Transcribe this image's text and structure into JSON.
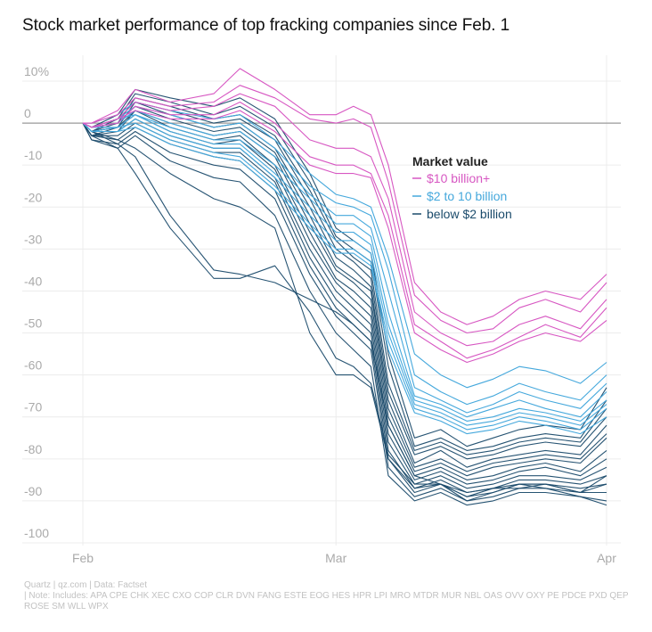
{
  "title": "Stock market performance of top fracking companies since Feb. 1",
  "footer": {
    "source": "Quartz | qz.com | Data: Factset",
    "note": "| Note: Includes: APA CPE CHK XEC CXO COP CLR DVN FANG ESTE EOG HES HPR LPI MRO MTDR MUR NBL OAS OVV OXY PE PDCE PXD QEP ROSE SM WLL WPX"
  },
  "chart_data": {
    "type": "line",
    "ylim": [
      -102,
      13
    ],
    "yticks": [
      {
        "value": 10,
        "label": "10%"
      },
      {
        "value": 0,
        "label": "0"
      },
      {
        "value": -10,
        "label": "-10"
      },
      {
        "value": -20,
        "label": "-20"
      },
      {
        "value": -30,
        "label": "-30"
      },
      {
        "value": -40,
        "label": "-40"
      },
      {
        "value": -50,
        "label": "-50"
      },
      {
        "value": -60,
        "label": "-60"
      },
      {
        "value": -70,
        "label": "-70"
      },
      {
        "value": -80,
        "label": "-80"
      },
      {
        "value": -90,
        "label": "-90"
      },
      {
        "value": -100,
        "label": "-100"
      }
    ],
    "xlim": [
      -1,
      62
    ],
    "xticks": [
      {
        "value": 0,
        "label": "Feb"
      },
      {
        "value": 29,
        "label": "Mar"
      },
      {
        "value": 60,
        "label": "Apr"
      }
    ],
    "legend": {
      "title": "Market value",
      "placement": "center-right",
      "items": [
        {
          "label": "$10 billion+",
          "color": "#d757c2"
        },
        {
          "label": "$2 to 10 billion",
          "color": "#45a8dc"
        },
        {
          "label": "below $2 billion",
          "color": "#1b4b6b"
        }
      ]
    },
    "anchors": [
      0,
      1,
      4,
      6,
      10,
      15,
      18,
      22,
      26,
      29,
      31,
      33,
      35,
      38,
      41,
      44,
      47,
      50,
      53,
      57,
      60
    ],
    "series": [
      {
        "group": "large",
        "values": [
          0,
          0,
          3,
          8,
          5,
          7,
          13,
          8,
          2,
          2,
          4,
          2,
          -10,
          -38,
          -45,
          -48,
          -46,
          -42,
          -40,
          -42,
          -36
        ]
      },
      {
        "group": "large",
        "values": [
          0,
          0,
          2,
          6,
          4,
          5,
          9,
          6,
          1,
          0,
          1,
          -1,
          -14,
          -41,
          -47,
          -50,
          -49,
          -44,
          -42,
          -45,
          -38
        ]
      },
      {
        "group": "large",
        "values": [
          0,
          -1,
          1,
          5,
          3,
          4,
          7,
          4,
          -4,
          -6,
          -6,
          -8,
          -18,
          -45,
          -50,
          -53,
          -52,
          -48,
          -46,
          -49,
          -42
        ]
      },
      {
        "group": "large",
        "values": [
          0,
          -1,
          0,
          4,
          2,
          2,
          5,
          0,
          -8,
          -10,
          -10,
          -12,
          -22,
          -48,
          -52,
          -56,
          -54,
          -51,
          -48,
          -51,
          -44
        ]
      },
      {
        "group": "large",
        "values": [
          0,
          -1,
          1,
          3,
          1,
          1,
          3,
          -2,
          -10,
          -12,
          -12,
          -13,
          -25,
          -50,
          -54,
          -57,
          -55,
          -52,
          -50,
          -52,
          -47
        ]
      },
      {
        "group": "mid",
        "values": [
          0,
          0,
          2,
          5,
          3,
          1,
          2,
          -4,
          -12,
          -17,
          -18,
          -20,
          -32,
          -55,
          -60,
          -63,
          -61,
          -58,
          -59,
          -62,
          -57
        ]
      },
      {
        "group": "mid",
        "values": [
          0,
          -1,
          1,
          4,
          2,
          -1,
          0,
          -6,
          -15,
          -19,
          -20,
          -22,
          -35,
          -60,
          -64,
          -67,
          -65,
          -62,
          -64,
          -66,
          -60
        ]
      },
      {
        "group": "mid",
        "values": [
          0,
          -1,
          0,
          3,
          0,
          -3,
          -2,
          -8,
          -17,
          -22,
          -22,
          -25,
          -40,
          -63,
          -66,
          -69,
          -67,
          -64,
          -66,
          -68,
          -62
        ]
      },
      {
        "group": "mid",
        "values": [
          0,
          -1,
          1,
          2,
          -1,
          -4,
          -4,
          -10,
          -18,
          -24,
          -24,
          -27,
          -45,
          -65,
          -67,
          -70,
          -68,
          -66,
          -68,
          -70,
          -64
        ]
      },
      {
        "group": "mid",
        "values": [
          0,
          -1,
          -1,
          2,
          -2,
          -5,
          -5,
          -12,
          -20,
          -26,
          -26,
          -29,
          -48,
          -66,
          -68,
          -71,
          -70,
          -68,
          -69,
          -71,
          -66
        ]
      },
      {
        "group": "mid",
        "values": [
          0,
          -2,
          -2,
          1,
          -3,
          -6,
          -6,
          -13,
          -22,
          -28,
          -28,
          -31,
          -50,
          -67,
          -69,
          -72,
          -71,
          -69,
          -70,
          -72,
          -67
        ]
      },
      {
        "group": "mid",
        "values": [
          0,
          -2,
          -1,
          0,
          -4,
          -7,
          -8,
          -15,
          -24,
          -30,
          -30,
          -33,
          -52,
          -68,
          -70,
          -73,
          -72,
          -70,
          -71,
          -73,
          -68
        ]
      },
      {
        "group": "mid",
        "values": [
          0,
          -2,
          -2,
          -1,
          -5,
          -8,
          -9,
          -16,
          -25,
          -31,
          -31,
          -34,
          -54,
          -69,
          -71,
          -74,
          -73,
          -71,
          -72,
          -74,
          -70
        ]
      },
      {
        "group": "small",
        "values": [
          0,
          -1,
          2,
          8,
          6,
          4,
          6,
          1,
          -12,
          -25,
          -28,
          -31,
          -55,
          -75,
          -73,
          -77,
          -75,
          -73,
          -72,
          -73,
          -63
        ]
      },
      {
        "group": "small",
        "values": [
          0,
          -1,
          1,
          7,
          5,
          2,
          4,
          -1,
          -14,
          -27,
          -30,
          -33,
          -58,
          -77,
          -75,
          -78,
          -77,
          -75,
          -74,
          -75,
          -66
        ]
      },
      {
        "group": "small",
        "values": [
          0,
          -1,
          0,
          6,
          4,
          1,
          2,
          -3,
          -16,
          -28,
          -32,
          -35,
          -62,
          -78,
          -76,
          -79,
          -78,
          -76,
          -75,
          -76,
          -68
        ]
      },
      {
        "group": "small",
        "values": [
          0,
          -2,
          1,
          5,
          3,
          0,
          1,
          -4,
          -18,
          -30,
          -33,
          -37,
          -64,
          -79,
          -77,
          -80,
          -79,
          -77,
          -76,
          -77,
          -70
        ]
      },
      {
        "group": "small",
        "values": [
          0,
          -2,
          -1,
          5,
          2,
          -1,
          0,
          -6,
          -20,
          -32,
          -35,
          -39,
          -66,
          -81,
          -78,
          -82,
          -80,
          -79,
          -78,
          -79,
          -72
        ]
      },
      {
        "group": "small",
        "values": [
          0,
          -2,
          0,
          4,
          1,
          -2,
          -1,
          -7,
          -22,
          -34,
          -37,
          -40,
          -68,
          -82,
          -80,
          -83,
          -81,
          -80,
          -79,
          -80,
          -74
        ]
      },
      {
        "group": "small",
        "values": [
          0,
          -2,
          -1,
          3,
          0,
          -3,
          -2,
          -8,
          -24,
          -35,
          -38,
          -42,
          -70,
          -83,
          -81,
          -84,
          -82,
          -81,
          -80,
          -81,
          -75
        ]
      },
      {
        "group": "small",
        "values": [
          0,
          -2,
          -2,
          3,
          -1,
          -4,
          -3,
          -10,
          -26,
          -37,
          -40,
          -44,
          -72,
          -84,
          -82,
          -85,
          -84,
          -82,
          -81,
          -83,
          -78
        ]
      },
      {
        "group": "small",
        "values": [
          0,
          -3,
          -1,
          2,
          -2,
          -5,
          -4,
          -11,
          -28,
          -38,
          -42,
          -46,
          -74,
          -85,
          -83,
          -86,
          -85,
          -83,
          -82,
          -84,
          -80
        ]
      },
      {
        "group": "small",
        "values": [
          0,
          -3,
          -2,
          1,
          -3,
          -6,
          -6,
          -13,
          -30,
          -40,
          -44,
          -48,
          -76,
          -86,
          -84,
          -87,
          -86,
          -84,
          -84,
          -85,
          -82
        ]
      },
      {
        "group": "small",
        "values": [
          0,
          -3,
          -3,
          0,
          -4,
          -7,
          -7,
          -14,
          -32,
          -42,
          -46,
          -50,
          -78,
          -87,
          -85,
          -88,
          -87,
          -85,
          -85,
          -86,
          -84
        ]
      },
      {
        "group": "small",
        "values": [
          0,
          -3,
          -4,
          -1,
          -5,
          -8,
          -9,
          -16,
          -34,
          -44,
          -48,
          -52,
          -80,
          -88,
          -86,
          -89,
          -88,
          -86,
          -86,
          -87,
          -86
        ]
      },
      {
        "group": "small",
        "values": [
          0,
          -4,
          -5,
          -2,
          -7,
          -10,
          -11,
          -18,
          -36,
          -46,
          -50,
          -54,
          -82,
          -89,
          -87,
          -90,
          -89,
          -87,
          -87,
          -88,
          -88
        ]
      },
      {
        "group": "small",
        "values": [
          0,
          -4,
          -6,
          -3,
          -9,
          -13,
          -14,
          -22,
          -40,
          -50,
          -54,
          -58,
          -84,
          -90,
          -88,
          -91,
          -90,
          -88,
          -88,
          -89,
          -90
        ]
      },
      {
        "group": "small",
        "values": [
          0,
          -2,
          -5,
          -8,
          -22,
          -35,
          -36,
          -38,
          -42,
          -45,
          -48,
          -52,
          -72,
          -84,
          -86,
          -90,
          -88,
          -86,
          -87,
          -89,
          -91
        ]
      },
      {
        "group": "small",
        "values": [
          0,
          -3,
          -6,
          -12,
          -25,
          -37,
          -37,
          -34,
          -45,
          -56,
          -58,
          -62,
          -79,
          -86,
          -86,
          -89,
          -87,
          -86,
          -86,
          -88,
          -86
        ]
      },
      {
        "group": "small",
        "values": [
          0,
          -2,
          -4,
          -6,
          -12,
          -18,
          -20,
          -25,
          -50,
          -60,
          -60,
          -63,
          -80,
          -87,
          -86,
          -88,
          -87,
          -87,
          -86,
          -88,
          -84
        ]
      }
    ]
  }
}
